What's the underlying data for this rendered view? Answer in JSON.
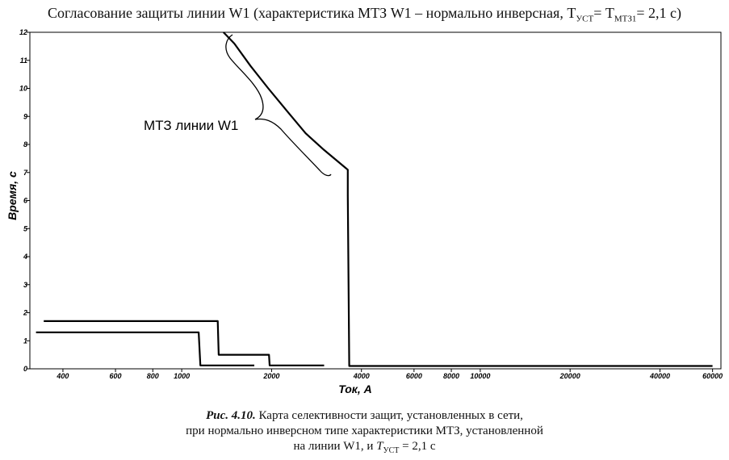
{
  "title": {
    "text_main": "Согласование защиты линии W1 (характеристика МТЗ W1 – нормально инверсная, T",
    "sub1": "УСТ",
    "text_mid": "= T",
    "sub2": "МТЗ1",
    "text_end": "= 2,1 с)"
  },
  "chart_data": {
    "type": "line",
    "xscale": "log",
    "xlabel": "Ток, А",
    "ylabel": "Время, с",
    "xlim": [
      310,
      64000
    ],
    "ylim": [
      0,
      12
    ],
    "xticks": [
      400,
      600,
      800,
      1000,
      2000,
      4000,
      6000,
      8000,
      10000,
      20000,
      40000,
      60000
    ],
    "yticks": [
      0,
      1,
      2,
      3,
      4,
      5,
      6,
      7,
      8,
      9,
      10,
      11,
      12
    ],
    "series": [
      {
        "name": "МТЗ линии W1",
        "points": [
          [
            1380,
            12
          ],
          [
            1500,
            11.6
          ],
          [
            1700,
            10.8
          ],
          [
            1950,
            10.0
          ],
          [
            2250,
            9.2
          ],
          [
            2600,
            8.4
          ],
          [
            3000,
            7.8
          ],
          [
            3550,
            7.15
          ],
          [
            3600,
            7.1
          ],
          [
            3600,
            6.2
          ],
          [
            3640,
            0.1
          ],
          [
            60000,
            0.1
          ]
        ]
      },
      {
        "name": "",
        "points": [
          [
            345,
            1.7
          ],
          [
            1320,
            1.7
          ],
          [
            1330,
            0.5
          ],
          [
            1960,
            0.5
          ],
          [
            1970,
            0.12
          ],
          [
            3000,
            0.12
          ]
        ]
      },
      {
        "name": "",
        "points": [
          [
            325,
            1.3
          ],
          [
            1140,
            1.3
          ],
          [
            1155,
            0.12
          ],
          [
            1750,
            0.12
          ]
        ]
      }
    ],
    "annotation": "МТЗ линии W1"
  },
  "caption": {
    "fig_label": "Рис. 4.10.",
    "line1": " Карта селективности защит, установленных в сети,",
    "line2": "при нормально инверсном типе характеристики МТЗ, установленной",
    "line3_start": "на линии W1, и ",
    "line3_t": "T",
    "line3_sub": "УСТ",
    "line3_end": " = 2,1 с"
  }
}
